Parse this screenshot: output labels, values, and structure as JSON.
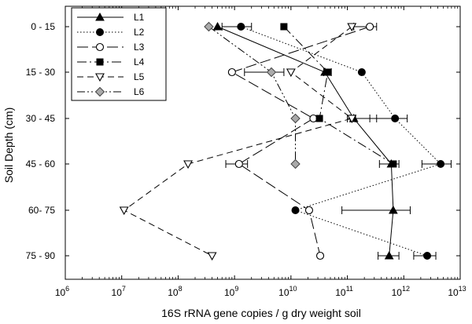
{
  "chart_data": {
    "type": "scatter",
    "xlabel": "16S rRNA gene copies / g dry weight soil",
    "ylabel": "Soil Depth (cm)",
    "x_scale": "log",
    "xlim": [
      1000000,
      10000000000000
    ],
    "x_tick_labels": [
      {
        "base": "10",
        "exp": "6"
      },
      {
        "base": "10",
        "exp": "7"
      },
      {
        "base": "10",
        "exp": "8"
      },
      {
        "base": "10",
        "exp": "9"
      },
      {
        "base": "10",
        "exp": "10"
      },
      {
        "base": "10",
        "exp": "11"
      },
      {
        "base": "10",
        "exp": "12"
      },
      {
        "base": "10",
        "exp": "13"
      }
    ],
    "categories": [
      "0 - 15",
      "15 - 30",
      "30 - 45",
      "45 - 60",
      "60- 75",
      "75 - 90"
    ],
    "legend_position": "top-left",
    "grid": false,
    "series": [
      {
        "name": "L1",
        "marker": "triangle",
        "dash": "solid",
        "color": "#000000",
        "values": [
          500000000,
          40000000000,
          130000000000,
          600000000000,
          650000000000,
          550000000000
        ],
        "err_low": [
          null,
          null,
          18000000000,
          230000000000,
          570000000000,
          200000000000
        ],
        "err_high": [
          null,
          null,
          200000000000,
          220000000000,
          650000000000,
          270000000000
        ]
      },
      {
        "name": "L2",
        "marker": "circle",
        "dash": "dotted",
        "color": "#000000",
        "values": [
          1300000000,
          180000000000,
          700000000000,
          4500000000000,
          12000000000,
          2600000000000
        ],
        "err_low": [
          700000000,
          null,
          450000000000,
          2400000000000,
          null,
          1100000000000
        ],
        "err_high": [
          700000000,
          null,
          450000000000,
          2400000000000,
          null,
          1100000000000
        ]
      },
      {
        "name": "L3",
        "marker": "circle-open",
        "dash": "long-dash",
        "color": "#000000",
        "values": [
          250000000000,
          900000000,
          25000000000,
          1200000000,
          21000000000,
          33000000000
        ],
        "err_low": [
          120000000000,
          null,
          null,
          500000000,
          null,
          null
        ],
        "err_high": [
          80000000000,
          null,
          null,
          500000000,
          null,
          null
        ]
      },
      {
        "name": "L4",
        "marker": "square",
        "dash": "dash-dot",
        "color": "#000000",
        "values": [
          7500000000,
          45000000000,
          32000000000,
          650000000000,
          null,
          null
        ],
        "err_low": [
          null,
          7000000000,
          null,
          null,
          null,
          null
        ],
        "err_high": [
          null,
          7000000000,
          null,
          null,
          null,
          null
        ]
      },
      {
        "name": "L5",
        "marker": "triangle-down-open",
        "dash": "dashed",
        "color": "#000000",
        "values": [
          120000000000,
          10000000000,
          120000000000,
          150000000,
          11000000,
          400000000
        ],
        "err_low": [
          null,
          null,
          20000000000,
          null,
          null,
          null
        ],
        "err_high": [
          null,
          null,
          20000000000,
          null,
          null,
          null
        ]
      },
      {
        "name": "L6",
        "marker": "diamond",
        "dash": "dash-dot-dot",
        "color": "#aaaaaa",
        "values": [
          350000000,
          4500000000,
          12000000000,
          12000000000,
          null,
          null
        ],
        "err_low": [
          null,
          3000000000,
          null,
          null,
          null,
          null
        ],
        "err_high": [
          null,
          3000000000,
          null,
          null,
          null,
          null
        ]
      }
    ]
  }
}
